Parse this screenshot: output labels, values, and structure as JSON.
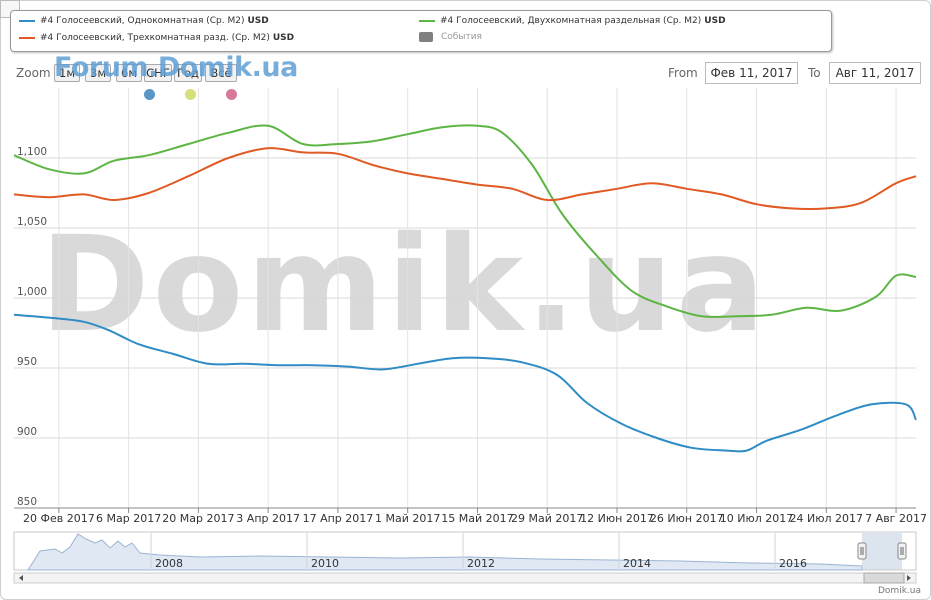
{
  "legend": {
    "items": [
      {
        "name": "#4 Голосеевский, Однокомнатная (Ср. M2)",
        "currency": "USD",
        "color": "#2f8cc5"
      },
      {
        "name": "#4 Голосеевский, Двухкомнатная раздельная (Ср. M2)",
        "currency": "USD",
        "color": "#5db544"
      },
      {
        "name": "#4 Голосеевский, Трехкомнатная разд. (Ср. M2)",
        "currency": "USD",
        "color": "#e05a23"
      }
    ],
    "events_label": "События",
    "events_color": "#808080"
  },
  "zoom": {
    "label": "Zoom",
    "buttons": [
      "1м",
      "3м",
      "6м",
      "СНГ",
      "Год",
      "Всё"
    ]
  },
  "date_range": {
    "from_label": "From",
    "from_value": "Фев 11, 2017",
    "to_label": "To",
    "to_value": "Авг 11, 2017"
  },
  "watermark": {
    "small": "Forum.Domik.ua",
    "big": "Domik.ua"
  },
  "event_dots": [
    "#5b96c8",
    "#d6df7a",
    "#d8789a"
  ],
  "credit": "Domik.ua",
  "chart_data": {
    "type": "line",
    "y_ticks": [
      "850",
      "900",
      "950",
      "1,000",
      "1,050",
      "1,100"
    ],
    "ylim": [
      850,
      1150
    ],
    "x_tick_labels": [
      "20 Фев 2017",
      "6 Мар 2017",
      "20 Мар 2017",
      "3 Апр 2017",
      "17 Апр 2017",
      "1 Май 2017",
      "15 Май 2017",
      "29 Май 2017",
      "12 Июн 2017",
      "26 Июн 2017",
      "10 Июл 2017",
      "24 Июл 2017",
      "7 Авг 2017"
    ],
    "x_tick_dates": [
      "2017-02-20",
      "2017-03-06",
      "2017-03-20",
      "2017-04-03",
      "2017-04-17",
      "2017-05-01",
      "2017-05-15",
      "2017-05-29",
      "2017-06-12",
      "2017-06-26",
      "2017-07-10",
      "2017-07-24",
      "2017-08-07"
    ],
    "x_range": [
      "2017-02-11",
      "2017-08-11"
    ],
    "grid": true,
    "series": [
      {
        "name": "#4 Голосеевский, Однокомнатная (Ср. M2)",
        "color": "#2f8cc5",
        "points": [
          [
            "2017-02-11",
            988
          ],
          [
            "2017-02-18",
            986
          ],
          [
            "2017-02-25",
            983
          ],
          [
            "2017-03-02",
            977
          ],
          [
            "2017-03-08",
            967
          ],
          [
            "2017-03-15",
            960
          ],
          [
            "2017-03-22",
            953
          ],
          [
            "2017-03-29",
            953
          ],
          [
            "2017-04-05",
            952
          ],
          [
            "2017-04-12",
            952
          ],
          [
            "2017-04-19",
            951
          ],
          [
            "2017-04-26",
            949
          ],
          [
            "2017-05-03",
            953
          ],
          [
            "2017-05-10",
            957
          ],
          [
            "2017-05-17",
            957
          ],
          [
            "2017-05-24",
            954
          ],
          [
            "2017-05-31",
            945
          ],
          [
            "2017-06-06",
            925
          ],
          [
            "2017-06-13",
            910
          ],
          [
            "2017-06-20",
            900
          ],
          [
            "2017-06-27",
            893
          ],
          [
            "2017-07-04",
            891
          ],
          [
            "2017-07-08",
            891
          ],
          [
            "2017-07-12",
            898
          ],
          [
            "2017-07-19",
            906
          ],
          [
            "2017-07-26",
            916
          ],
          [
            "2017-08-02",
            924
          ],
          [
            "2017-08-09",
            924
          ],
          [
            "2017-08-11",
            913
          ]
        ]
      },
      {
        "name": "#4 Голосеевский, Двухкомнатная раздельная (Ср. M2)",
        "color": "#5db544",
        "points": [
          [
            "2017-02-11",
            1102
          ],
          [
            "2017-02-18",
            1092
          ],
          [
            "2017-02-25",
            1089
          ],
          [
            "2017-03-03",
            1098
          ],
          [
            "2017-03-10",
            1102
          ],
          [
            "2017-03-18",
            1110
          ],
          [
            "2017-03-26",
            1118
          ],
          [
            "2017-04-03",
            1123
          ],
          [
            "2017-04-10",
            1110
          ],
          [
            "2017-04-17",
            1110
          ],
          [
            "2017-04-24",
            1112
          ],
          [
            "2017-05-01",
            1117
          ],
          [
            "2017-05-08",
            1122
          ],
          [
            "2017-05-15",
            1123
          ],
          [
            "2017-05-20",
            1118
          ],
          [
            "2017-05-26",
            1095
          ],
          [
            "2017-06-01",
            1060
          ],
          [
            "2017-06-08",
            1030
          ],
          [
            "2017-06-15",
            1005
          ],
          [
            "2017-06-22",
            994
          ],
          [
            "2017-06-29",
            987
          ],
          [
            "2017-07-06",
            987
          ],
          [
            "2017-07-13",
            988
          ],
          [
            "2017-07-20",
            993
          ],
          [
            "2017-07-27",
            991
          ],
          [
            "2017-08-03",
            1001
          ],
          [
            "2017-08-07",
            1016
          ],
          [
            "2017-08-11",
            1015
          ]
        ]
      },
      {
        "name": "#4 Голосеевский, Трехкомнатная разд. (Ср. M2)",
        "color": "#e05a23",
        "points": [
          [
            "2017-02-11",
            1074
          ],
          [
            "2017-02-18",
            1072
          ],
          [
            "2017-02-25",
            1074
          ],
          [
            "2017-03-03",
            1070
          ],
          [
            "2017-03-10",
            1075
          ],
          [
            "2017-03-18",
            1087
          ],
          [
            "2017-03-26",
            1100
          ],
          [
            "2017-04-03",
            1107
          ],
          [
            "2017-04-10",
            1104
          ],
          [
            "2017-04-17",
            1103
          ],
          [
            "2017-04-24",
            1095
          ],
          [
            "2017-05-01",
            1089
          ],
          [
            "2017-05-08",
            1085
          ],
          [
            "2017-05-15",
            1081
          ],
          [
            "2017-05-22",
            1078
          ],
          [
            "2017-05-29",
            1070
          ],
          [
            "2017-06-05",
            1074
          ],
          [
            "2017-06-12",
            1078
          ],
          [
            "2017-06-19",
            1082
          ],
          [
            "2017-06-26",
            1078
          ],
          [
            "2017-07-03",
            1074
          ],
          [
            "2017-07-10",
            1067
          ],
          [
            "2017-07-17",
            1064
          ],
          [
            "2017-07-24",
            1064
          ],
          [
            "2017-07-31",
            1068
          ],
          [
            "2017-08-07",
            1082
          ],
          [
            "2017-08-11",
            1087
          ]
        ]
      }
    ],
    "navigator": {
      "year_labels": [
        "2008",
        "2010",
        "2012",
        "2014",
        "2016"
      ]
    }
  }
}
